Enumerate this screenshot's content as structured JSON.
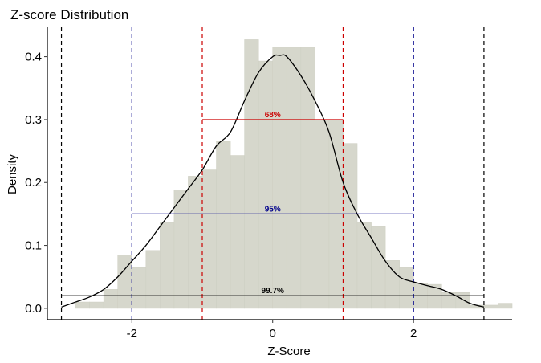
{
  "chart_data": {
    "type": "bar",
    "title": "Z-score Distribution",
    "xlabel": "Z-Score",
    "ylabel": "Density",
    "xlim": [
      -3.2,
      3.4
    ],
    "ylim": [
      -0.018,
      0.448
    ],
    "x_ticks": [
      -2,
      0,
      2
    ],
    "x_tick_labels": [
      "-2",
      "0",
      "2"
    ],
    "y_ticks": [
      0.0,
      0.1,
      0.2,
      0.3,
      0.4
    ],
    "y_tick_labels": [
      "0.0",
      "0.1",
      "0.2",
      "0.3",
      "0.4"
    ],
    "grid": false,
    "legend": "none",
    "histogram": {
      "bin_width": 0.2,
      "bins": [
        {
          "x0": -3.0,
          "density": 0.0
        },
        {
          "x0": -2.8,
          "density": 0.01
        },
        {
          "x0": -2.6,
          "density": 0.01
        },
        {
          "x0": -2.4,
          "density": 0.03
        },
        {
          "x0": -2.2,
          "density": 0.085
        },
        {
          "x0": -2.0,
          "density": 0.065
        },
        {
          "x0": -1.8,
          "density": 0.092
        },
        {
          "x0": -1.6,
          "density": 0.136
        },
        {
          "x0": -1.4,
          "density": 0.188
        },
        {
          "x0": -1.2,
          "density": 0.21
        },
        {
          "x0": -1.0,
          "density": 0.22
        },
        {
          "x0": -0.8,
          "density": 0.265
        },
        {
          "x0": -0.6,
          "density": 0.243
        },
        {
          "x0": -0.4,
          "density": 0.427
        },
        {
          "x0": -0.2,
          "density": 0.393
        },
        {
          "x0": 0.0,
          "density": 0.415
        },
        {
          "x0": 0.2,
          "density": 0.415
        },
        {
          "x0": 0.4,
          "density": 0.415
        },
        {
          "x0": 0.6,
          "density": 0.3
        },
        {
          "x0": 0.8,
          "density": 0.3
        },
        {
          "x0": 1.0,
          "density": 0.262
        },
        {
          "x0": 1.2,
          "density": 0.136
        },
        {
          "x0": 1.4,
          "density": 0.13
        },
        {
          "x0": 1.6,
          "density": 0.076
        },
        {
          "x0": 1.8,
          "density": 0.065
        },
        {
          "x0": 2.0,
          "density": 0.04
        },
        {
          "x0": 2.2,
          "density": 0.038
        },
        {
          "x0": 2.4,
          "density": 0.025
        },
        {
          "x0": 2.6,
          "density": 0.025
        },
        {
          "x0": 2.8,
          "density": 0.005
        },
        {
          "x0": 3.0,
          "density": 0.005
        },
        {
          "x0": 3.2,
          "density": 0.008
        }
      ]
    },
    "density_curve": {
      "x": [
        -3.0,
        -2.8,
        -2.6,
        -2.4,
        -2.2,
        -2.0,
        -1.8,
        -1.6,
        -1.4,
        -1.2,
        -1.0,
        -0.8,
        -0.6,
        -0.4,
        -0.2,
        0.0,
        0.1,
        0.2,
        0.4,
        0.6,
        0.8,
        1.0,
        1.2,
        1.4,
        1.6,
        1.8,
        2.0,
        2.2,
        2.4,
        2.6,
        2.8,
        3.0
      ],
      "y": [
        0.002,
        0.01,
        0.018,
        0.03,
        0.05,
        0.075,
        0.1,
        0.13,
        0.16,
        0.19,
        0.22,
        0.258,
        0.28,
        0.33,
        0.375,
        0.4,
        0.402,
        0.4,
        0.37,
        0.33,
        0.28,
        0.2,
        0.15,
        0.112,
        0.075,
        0.05,
        0.042,
        0.036,
        0.03,
        0.02,
        0.008,
        0.002
      ],
      "color": "#000000"
    },
    "reference_lines": [
      {
        "x": -1,
        "color": "#cc0000",
        "style": "dashed"
      },
      {
        "x": 1,
        "color": "#cc0000",
        "style": "dashed"
      },
      {
        "x": -2,
        "color": "#00008b",
        "style": "dashed"
      },
      {
        "x": 2,
        "color": "#00008b",
        "style": "dashed"
      },
      {
        "x": -3,
        "color": "#000000",
        "style": "dashed"
      },
      {
        "x": 3,
        "color": "#000000",
        "style": "dashed"
      }
    ],
    "intervals": [
      {
        "x0": -1,
        "x1": 1,
        "y": 0.3,
        "label": "68%",
        "color": "#cc0000"
      },
      {
        "x0": -2,
        "x1": 2,
        "y": 0.15,
        "label": "95%",
        "color": "#00008b"
      },
      {
        "x0": -3,
        "x1": 3,
        "y": 0.02,
        "label": "99.7%",
        "color": "#000000"
      }
    ],
    "colors": {
      "bar_fill": "#d6d7cc",
      "bar_stroke": "#cfd0c4",
      "axis": "#000000"
    }
  }
}
